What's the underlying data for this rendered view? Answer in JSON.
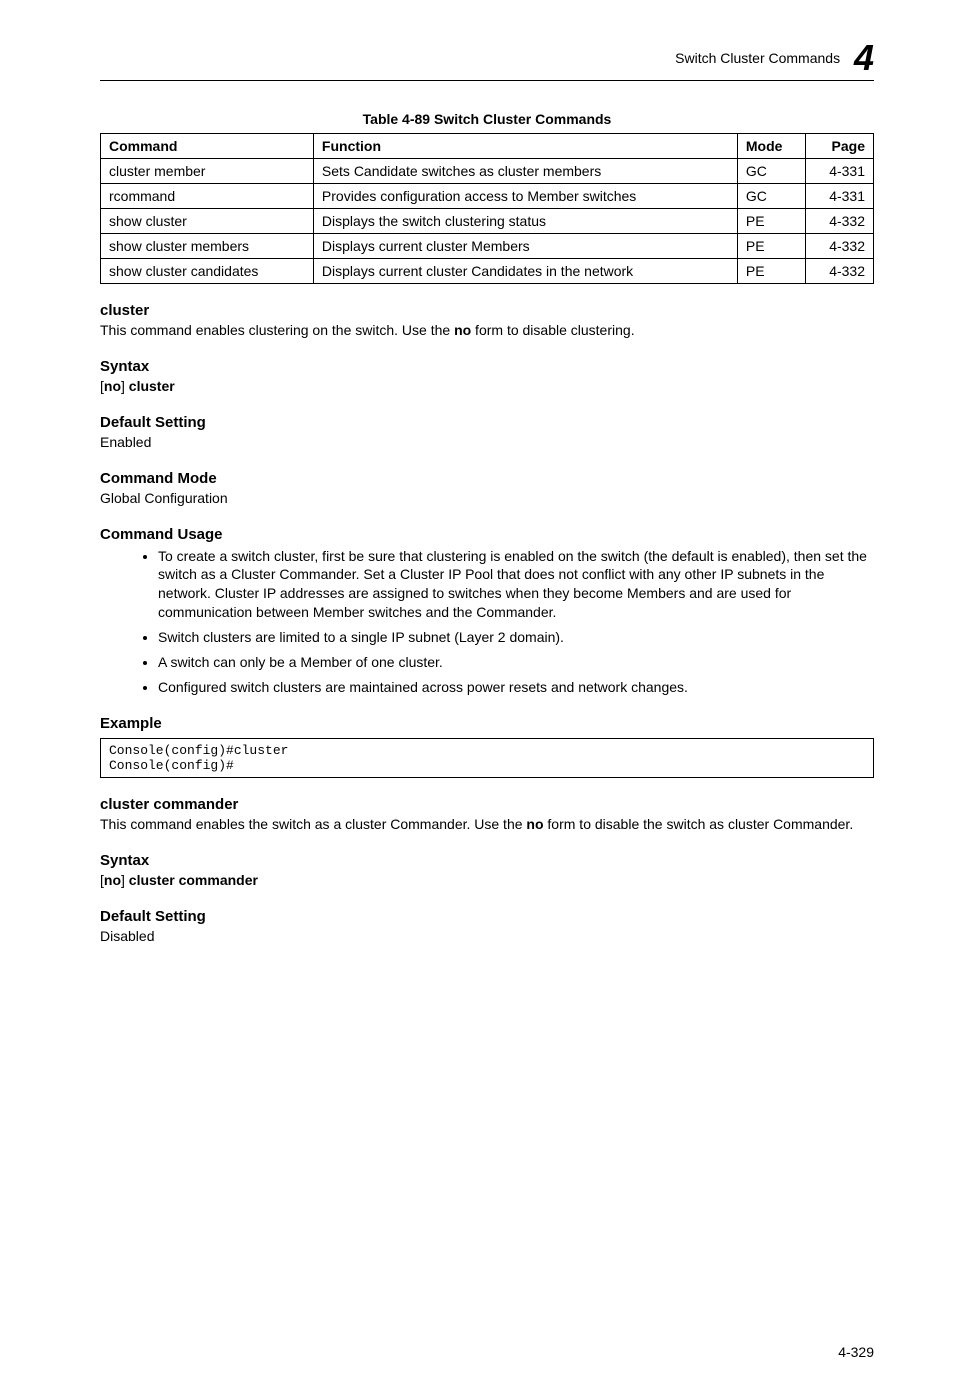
{
  "header": {
    "title": "Switch Cluster Commands",
    "chapter_num": "4"
  },
  "table": {
    "title": "Table 4-89  Switch Cluster Commands",
    "columns": [
      "Command",
      "Function",
      "Mode",
      "Page"
    ],
    "rows": [
      [
        "cluster member",
        "Sets Candidate switches as cluster members",
        "GC",
        "4-331"
      ],
      [
        "rcommand",
        "Provides configuration access to Member switches",
        "GC",
        "4-331"
      ],
      [
        "show cluster",
        "Displays the switch clustering status",
        "PE",
        "4-332"
      ],
      [
        "show cluster members",
        "Displays current cluster Members",
        "PE",
        "4-332"
      ],
      [
        "show cluster candidates",
        "Displays current cluster Candidates in the network",
        "PE",
        "4-332"
      ]
    ]
  },
  "cluster": {
    "heading": "cluster",
    "body_a": "This command enables clustering on the switch. Use the ",
    "body_b": "no",
    "body_c": " form to disable clustering.",
    "syntax_h": "Syntax",
    "syntax_a": "[",
    "syntax_b": "no",
    "syntax_c": "] ",
    "syntax_d": "cluster",
    "default_h": "Default Setting",
    "default_v": "Enabled",
    "mode_h": "Command Mode",
    "mode_v": "Global Configuration",
    "usage_h": "Command Usage",
    "usage": [
      "To create a switch cluster, first be sure that clustering is enabled on the switch (the default is enabled), then set the switch as a Cluster Commander. Set a Cluster IP Pool that does not conflict with any other IP subnets in the network. Cluster IP addresses are assigned to switches when they become Members and are used for communication between Member switches and the Commander.",
      "Switch clusters are limited to a single IP subnet (Layer 2 domain).",
      "A switch can only be a Member of one cluster.",
      "Configured switch clusters are maintained across power resets and network changes."
    ],
    "example_h": "Example",
    "example_code": "Console(config)#cluster\nConsole(config)#"
  },
  "cluster_commander": {
    "heading": "cluster commander",
    "body_a": "This command enables the switch as a cluster Commander. Use the ",
    "body_b": "no",
    "body_c": " form to disable the switch as cluster Commander.",
    "syntax_h": "Syntax",
    "syntax_a": "[",
    "syntax_b": "no",
    "syntax_c": "] ",
    "syntax_d": "cluster commander",
    "default_h": "Default Setting",
    "default_v": "Disabled"
  },
  "footer": {
    "page": "4-329"
  }
}
